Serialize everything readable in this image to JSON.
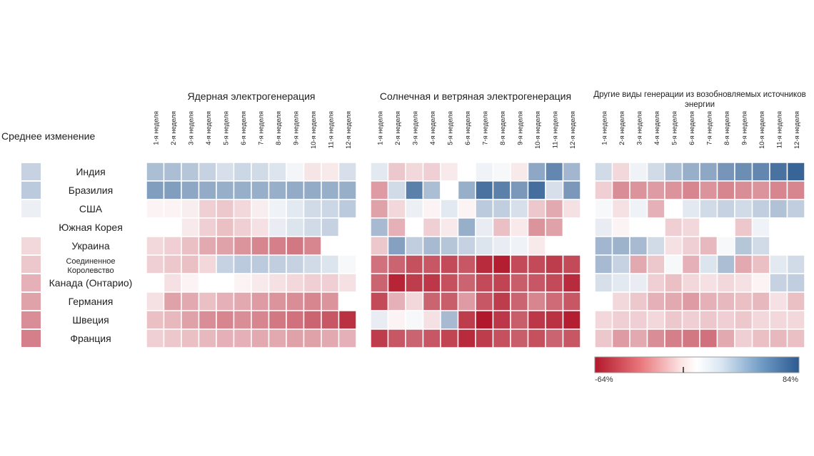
{
  "chart_data": {
    "type": "heatmap",
    "average_title": "Среднее изменение",
    "weeks": [
      "1-я неделя",
      "2-я неделя",
      "3-я неделя",
      "4-я неделя",
      "5-я неделя",
      "6-я неделя",
      "7-я неделя",
      "8-я неделя",
      "9-я неделя",
      "10-я неделя",
      "11-я неделя",
      "12-я неделя"
    ],
    "rows": [
      "Индия",
      "Бразилия",
      "США",
      "Южная Корея",
      "Украина",
      "Соединенное Королевство",
      "Канада (Онтарио)",
      "Германия",
      "Швеция",
      "Франция"
    ],
    "average_change": [
      18,
      22,
      5,
      0,
      -8,
      -12,
      -18,
      -22,
      -28,
      -32
    ],
    "panels": [
      {
        "title": "Ядерная электрогенерация",
        "values": [
          [
            28,
            28,
            24,
            18,
            12,
            16,
            14,
            10,
            3,
            -5,
            -4,
            12
          ],
          [
            45,
            45,
            40,
            38,
            36,
            36,
            36,
            36,
            38,
            38,
            36,
            36
          ],
          [
            -2,
            -2,
            -3,
            -10,
            -12,
            -8,
            -3,
            4,
            8,
            14,
            16,
            22
          ],
          [
            0,
            0,
            -4,
            -10,
            -14,
            -10,
            -6,
            6,
            10,
            14,
            18,
            0
          ],
          [
            -8,
            -10,
            -14,
            -20,
            -22,
            -26,
            -30,
            -32,
            -34,
            -30,
            0,
            0
          ],
          [
            -10,
            -12,
            -14,
            -8,
            18,
            22,
            22,
            20,
            18,
            14,
            10,
            2
          ],
          [
            0,
            -6,
            -2,
            0,
            0,
            -2,
            -4,
            -6,
            -8,
            -10,
            -10,
            -6
          ],
          [
            -6,
            -22,
            -20,
            -14,
            -18,
            -20,
            -24,
            -26,
            -28,
            -30,
            -26,
            0
          ],
          [
            -14,
            -16,
            -22,
            -28,
            -30,
            -28,
            -30,
            -34,
            -36,
            -40,
            -44,
            -56
          ],
          [
            -10,
            -12,
            -14,
            -16,
            -18,
            -18,
            -20,
            -20,
            -22,
            -22,
            -20,
            -18
          ]
        ]
      },
      {
        "title": "Солнечная и ветряная электрогенерация",
        "values": [
          [
            8,
            -12,
            -8,
            -10,
            -4,
            0,
            4,
            2,
            -4,
            40,
            58,
            32
          ],
          [
            -24,
            14,
            62,
            28,
            0,
            36,
            70,
            62,
            48,
            72,
            12,
            48
          ],
          [
            -22,
            -8,
            5,
            -2,
            8,
            -2,
            22,
            20,
            12,
            -12,
            -20,
            -6
          ],
          [
            30,
            -18,
            0,
            -10,
            -4,
            36,
            6,
            -14,
            -4,
            -26,
            -22,
            0
          ],
          [
            -12,
            44,
            20,
            30,
            24,
            18,
            10,
            6,
            4,
            -4,
            0,
            0
          ],
          [
            -36,
            -40,
            -46,
            -44,
            -48,
            -44,
            -58,
            -62,
            -48,
            -48,
            -52,
            -48
          ],
          [
            -40,
            -60,
            -52,
            -54,
            -46,
            -40,
            -48,
            -50,
            -42,
            -44,
            -48,
            -58
          ],
          [
            -48,
            -18,
            -8,
            -40,
            -42,
            -24,
            -44,
            -52,
            -40,
            -30,
            -38,
            -44
          ],
          [
            6,
            -2,
            2,
            -6,
            30,
            -52,
            -64,
            -54,
            -42,
            -54,
            -56,
            -62
          ],
          [
            -52,
            -44,
            -40,
            -44,
            -50,
            -58,
            -52,
            -46,
            -42,
            -46,
            -40,
            -44
          ]
        ]
      },
      {
        "title": "Другие виды генерации из возобновляемых источников энергии",
        "values": [
          [
            14,
            -8,
            4,
            14,
            28,
            36,
            40,
            50,
            54,
            58,
            70,
            78
          ],
          [
            -10,
            -28,
            -26,
            -24,
            -26,
            -30,
            -26,
            -30,
            -28,
            -26,
            -30,
            -30
          ],
          [
            2,
            -6,
            4,
            -18,
            0,
            8,
            14,
            18,
            14,
            20,
            26,
            20
          ],
          [
            6,
            -2,
            0,
            0,
            -10,
            -8,
            0,
            0,
            -12,
            4,
            0,
            0
          ],
          [
            32,
            34,
            30,
            14,
            -6,
            -10,
            -16,
            2,
            24,
            14,
            0,
            0
          ],
          [
            30,
            18,
            -20,
            -12,
            2,
            -18,
            10,
            28,
            -20,
            -14,
            8,
            14
          ],
          [
            12,
            8,
            6,
            -10,
            -14,
            -8,
            -6,
            -8,
            -6,
            -2,
            18,
            20
          ],
          [
            0,
            -8,
            -12,
            -18,
            -20,
            -24,
            -18,
            -16,
            -14,
            -16,
            -6,
            -14
          ],
          [
            -8,
            -10,
            -10,
            -8,
            -12,
            -10,
            -12,
            -10,
            -12,
            -8,
            -8,
            -8
          ],
          [
            -12,
            -24,
            -20,
            -28,
            -32,
            -34,
            -36,
            -20,
            -10,
            -14,
            -16,
            -14
          ]
        ]
      }
    ],
    "color_scale": {
      "min": -64,
      "max": 84,
      "min_label": "-64%",
      "max_label": "84%",
      "negative_color": "#b2182b",
      "neutral_color": "#ffffff",
      "positive_color": "#2b5a91"
    }
  }
}
